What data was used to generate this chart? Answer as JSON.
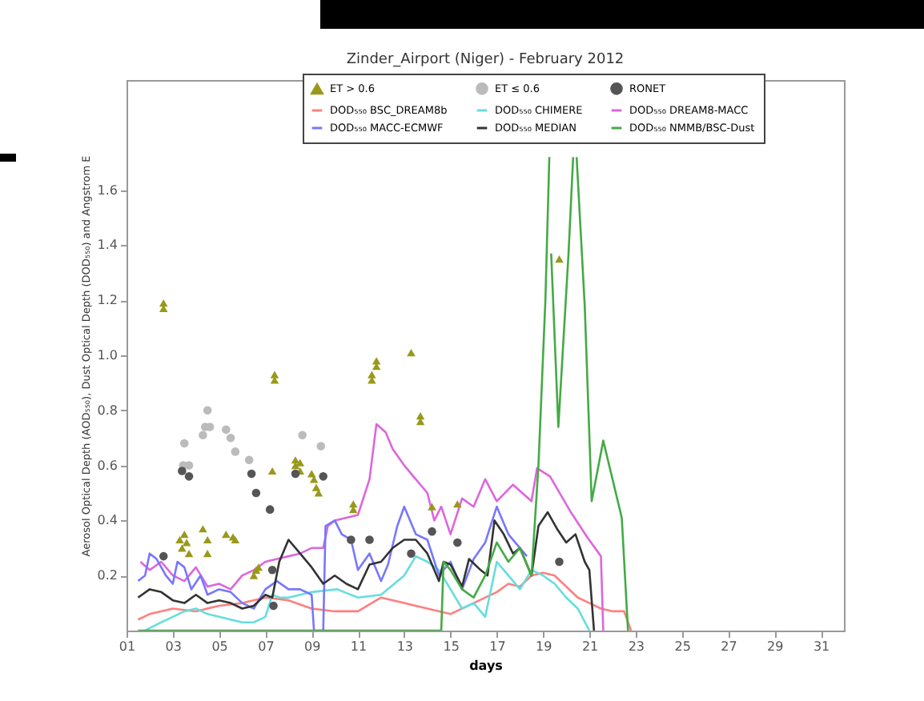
{
  "chart_data": [
    {
      "type": "line",
      "title": "Zinder_Airport (Niger) - February 2012",
      "xlabel": "days",
      "ylabel": "Aerosol Optical Depth (AOD₅₅₀), Dust Optical Depth (DOD₅₅₀) and Angstrom E",
      "xlim": [
        1,
        32
      ],
      "ylim": [
        0,
        2.0
      ],
      "xticks": [
        {
          "value": 1,
          "label": "01"
        },
        {
          "value": 3,
          "label": "03"
        },
        {
          "value": 5,
          "label": "05"
        },
        {
          "value": 7,
          "label": "07"
        },
        {
          "value": 9,
          "label": "09"
        },
        11,
        13,
        15,
        17,
        19,
        21,
        23,
        25,
        27,
        29,
        31
      ],
      "yticks": [
        0.2,
        0.4,
        0.6,
        0.8,
        {
          "value": 1,
          "label": "1.0"
        },
        1.2,
        1.4,
        1.6
      ],
      "legend": "top",
      "line_style": "solid",
      "series": [
        {
          "name": "ET > 0.6",
          "type": "scatter",
          "marker": "triangle",
          "color": "#99991a",
          "x": [
            2.6,
            2.6,
            3.3,
            3.4,
            3.5,
            3.6,
            3.7,
            4.3,
            4.5,
            4.5,
            5.3,
            5.6,
            5.7,
            6.5,
            6.6,
            6.7,
            7.3,
            7.4,
            7.4,
            8.3,
            8.3,
            8.5,
            8.5,
            9.0,
            9.1,
            9.2,
            9.3,
            10.8,
            10.8,
            11.6,
            11.6,
            11.8,
            11.8,
            13.3,
            13.7,
            13.7,
            14.2,
            15.3,
            19.7
          ],
          "values": [
            1.17,
            1.19,
            0.33,
            0.3,
            0.35,
            0.32,
            0.28,
            0.37,
            0.33,
            0.28,
            0.35,
            0.34,
            0.33,
            0.2,
            0.22,
            0.23,
            0.58,
            0.91,
            0.93,
            0.62,
            0.6,
            0.61,
            0.58,
            0.57,
            0.55,
            0.52,
            0.5,
            0.44,
            0.46,
            0.91,
            0.93,
            0.96,
            0.98,
            1.01,
            0.76,
            0.78,
            0.45,
            0.46,
            1.35
          ]
        },
        {
          "name": "ET ≤ 0.6",
          "type": "scatter",
          "marker": "circle",
          "color": "#bbbbbb",
          "x": [
            3.45,
            3.7,
            3.5,
            4.3,
            4.4,
            4.5,
            4.6,
            5.3,
            5.5,
            5.7,
            6.3,
            8.6,
            9.4
          ],
          "values": [
            0.6,
            0.6,
            0.68,
            0.71,
            0.74,
            0.8,
            0.74,
            0.73,
            0.7,
            0.65,
            0.62,
            0.71,
            0.67
          ]
        },
        {
          "name": "RONET",
          "type": "scatter",
          "marker": "circle",
          "color": "#555555",
          "x": [
            2.6,
            3.4,
            3.7,
            6.4,
            6.6,
            7.2,
            7.3,
            7.35,
            8.3,
            9.5,
            10.7,
            11.5,
            13.3,
            14.2,
            15.3,
            19.7
          ],
          "values": [
            0.27,
            0.58,
            0.56,
            0.57,
            0.5,
            0.44,
            0.22,
            0.09,
            0.57,
            0.56,
            0.33,
            0.33,
            0.28,
            0.36,
            0.32,
            0.25
          ]
        },
        {
          "name": "DOD₅₅₀ BSC_DREAM8b",
          "color": "#ff7f7f",
          "x": [
            1.5,
            2,
            3,
            4,
            5,
            6,
            7,
            8,
            9,
            10,
            11,
            12,
            13,
            14,
            15,
            16,
            17,
            17.5,
            18,
            18.5,
            19,
            19.5,
            20,
            20.5,
            21,
            21.5,
            22,
            22.5,
            22.8
          ],
          "values": [
            0.04,
            0.06,
            0.08,
            0.07,
            0.09,
            0.1,
            0.12,
            0.11,
            0.08,
            0.07,
            0.07,
            0.12,
            0.1,
            0.08,
            0.06,
            0.1,
            0.14,
            0.17,
            0.16,
            0.2,
            0.21,
            0.2,
            0.16,
            0.12,
            0.1,
            0.08,
            0.07,
            0.07,
            0
          ]
        },
        {
          "name": "DOD₅₅₀ CHIMERE",
          "color": "#66dddd",
          "x": [
            1.8,
            2.5,
            3,
            3.5,
            4,
            4.5,
            5,
            5.5,
            6,
            6.5,
            7,
            7.3,
            7.6,
            8,
            9,
            10.1,
            11,
            12,
            13,
            13.5,
            14,
            14.5,
            15,
            15.5,
            16,
            16.5,
            17,
            17.5,
            18,
            18.5,
            19,
            19.5,
            20,
            20.5,
            21
          ],
          "values": [
            0,
            0.03,
            0.05,
            0.07,
            0.08,
            0.06,
            0.05,
            0.04,
            0.03,
            0.03,
            0.05,
            0.13,
            0.12,
            0.12,
            0.14,
            0.15,
            0.12,
            0.13,
            0.2,
            0.27,
            0.25,
            0.22,
            0.15,
            0.08,
            0.1,
            0.05,
            0.25,
            0.2,
            0.15,
            0.22,
            0.2,
            0.17,
            0.12,
            0.08,
            0
          ]
        },
        {
          "name": "DOD₅₅₀ DREAM8-MACC",
          "color": "#dd66dd",
          "x": [
            1.6,
            2,
            2.5,
            3,
            3.5,
            4,
            4.5,
            5,
            5.5,
            6,
            6.5,
            7,
            7.5,
            8,
            8.5,
            9,
            9.5,
            9.7,
            10,
            10.5,
            11,
            11.5,
            11.8,
            12.2,
            12.5,
            13,
            13.5,
            14,
            14.3,
            14.6,
            15,
            15.5,
            16,
            16.5,
            17,
            17.7,
            18.5,
            18.74,
            19.3,
            20.2,
            20.9,
            21.5,
            21.6
          ],
          "values": [
            0.25,
            0.22,
            0.25,
            0.2,
            0.18,
            0.23,
            0.16,
            0.17,
            0.15,
            0.2,
            0.22,
            0.25,
            0.26,
            0.27,
            0.28,
            0.3,
            0.3,
            0.38,
            0.4,
            0.41,
            0.42,
            0.55,
            0.75,
            0.72,
            0.66,
            0.6,
            0.55,
            0.5,
            0.4,
            0.45,
            0.35,
            0.48,
            0.45,
            0.55,
            0.47,
            0.53,
            0.47,
            0.59,
            0.56,
            0.43,
            0.34,
            0.27,
            0
          ]
        },
        {
          "name": "DOD₅₅₀ MACC-ECMWF",
          "color": "#7777ff",
          "x": [
            1.5,
            1.8,
            2,
            2.3,
            2.7,
            3,
            3.2,
            3.5,
            3.8,
            4.2,
            4.5,
            5,
            5.5,
            6,
            6.5,
            7,
            7.5,
            8,
            8.5,
            9,
            9.1,
            9.5,
            9.6,
            10,
            10.3,
            10.7,
            11,
            11.5,
            12,
            12.3,
            12.7,
            13,
            13.5,
            14,
            14.5,
            15,
            15.5,
            16,
            16.5,
            17,
            17.5,
            18,
            18.3
          ],
          "values": [
            0.18,
            0.2,
            0.28,
            0.26,
            0.2,
            0.17,
            0.25,
            0.23,
            0.15,
            0.2,
            0.13,
            0.15,
            0.14,
            0.1,
            0.08,
            0.15,
            0.18,
            0.15,
            0.15,
            0.13,
            0,
            0,
            0.38,
            0.4,
            0.35,
            0.33,
            0.22,
            0.28,
            0.18,
            0.24,
            0.38,
            0.45,
            0.35,
            0.33,
            0.2,
            0.25,
            0.15,
            0.26,
            0.32,
            0.45,
            0.35,
            0.3,
            0.27
          ]
        },
        {
          "name": "DOD₅₅₀ MEDIAN",
          "color": "#333333",
          "x": [
            1.5,
            2,
            2.5,
            3,
            3.5,
            4,
            4.5,
            5,
            5.5,
            6,
            6.5,
            7,
            7.3,
            7.6,
            8,
            8.5,
            9,
            9.5,
            10,
            10.5,
            11,
            11.5,
            12,
            12.5,
            13,
            13.5,
            14,
            14.5,
            14.7,
            15,
            15.5,
            15.8,
            16.3,
            16.6,
            16.9,
            17.3,
            17.7,
            18,
            18.5,
            18.8,
            19.2,
            19.6,
            20,
            20.4,
            20.8,
            21,
            21.2
          ],
          "values": [
            0.12,
            0.15,
            0.14,
            0.11,
            0.1,
            0.13,
            0.1,
            0.11,
            0.1,
            0.08,
            0.09,
            0.13,
            0.12,
            0.25,
            0.33,
            0.28,
            0.23,
            0.17,
            0.2,
            0.17,
            0.15,
            0.24,
            0.25,
            0.3,
            0.33,
            0.33,
            0.28,
            0.18,
            0.25,
            0.24,
            0.16,
            0.26,
            0.22,
            0.2,
            0.4,
            0.35,
            0.28,
            0.3,
            0.2,
            0.38,
            0.43,
            0.37,
            0.32,
            0.35,
            0.25,
            0.22,
            0
          ]
        },
        {
          "name": "DOD₅₅₀ NMMB/BSC-Dust",
          "color": "#44aa44",
          "x": [
            1.5,
            14.6,
            14.7,
            15,
            15.5,
            16,
            16.5,
            17,
            17.5,
            18,
            18.5,
            18.8,
            19.1,
            19.27,
            19.3,
            19.35,
            19.66,
            20.1,
            20.3,
            20.35,
            20.45,
            20.8,
            21.1,
            21.6,
            22.4,
            22.67
          ],
          "values": [
            0,
            0,
            0.25,
            0.22,
            0.15,
            0.12,
            0.2,
            0.32,
            0.25,
            0.3,
            0.2,
            0.6,
            1.2,
            1.72,
            null,
            1.37,
            0.74,
            1.37,
            1.72,
            null,
            1.72,
            1.18,
            0.47,
            0.69,
            0.41,
            0
          ]
        }
      ]
    }
  ]
}
